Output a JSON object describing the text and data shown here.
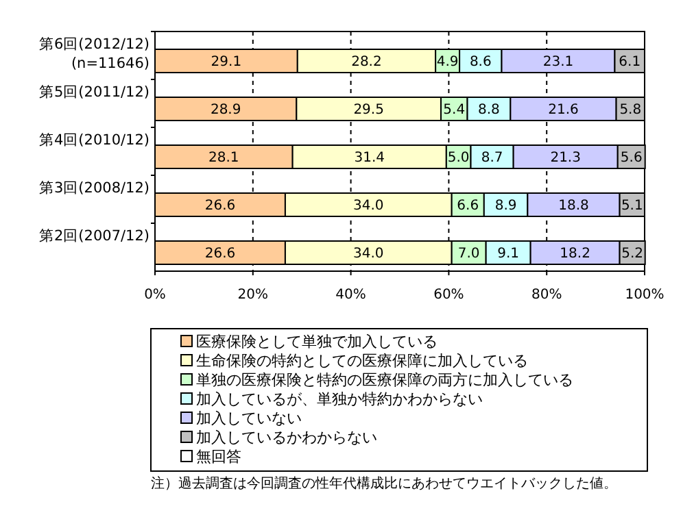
{
  "chart_data": {
    "type": "bar",
    "orientation": "horizontal",
    "stacked": true,
    "categories": [
      "第6回(2012/12)\n(n=11646)",
      "第5回(2011/12)",
      "第4回(2010/12)",
      "第3回(2008/12)",
      "第2回(2007/12)"
    ],
    "series": [
      {
        "name": "医療保険として単独で加入している",
        "color": "#ffcc99",
        "values": [
          29.1,
          28.9,
          28.1,
          26.6,
          26.6
        ],
        "value_labels": [
          "29.1",
          "28.9",
          "28.1",
          "26.6",
          "26.6"
        ]
      },
      {
        "name": "生命保険の特約としての医療保障に加入している",
        "color": "#ffffcc",
        "values": [
          28.2,
          29.5,
          31.4,
          34.0,
          34.0
        ],
        "value_labels": [
          "28.2",
          "29.5",
          "31.4",
          "34.0",
          "34.0"
        ]
      },
      {
        "name": "単独の医療保険と特約の医療保障の両方に加入している",
        "color": "#ccffcc",
        "values": [
          4.9,
          5.4,
          5.0,
          6.6,
          7.0
        ],
        "value_labels": [
          "4.9",
          "5.4",
          "5.0",
          "6.6",
          "7.0"
        ]
      },
      {
        "name": "加入しているが、単独か特約かわからない",
        "color": "#ccffff",
        "values": [
          8.6,
          8.8,
          8.7,
          8.9,
          9.1
        ],
        "value_labels": [
          "8.6",
          "8.8",
          "8.7",
          "8.9",
          "9.1"
        ]
      },
      {
        "name": "加入していない",
        "color": "#ccccff",
        "values": [
          23.1,
          21.6,
          21.3,
          18.8,
          18.2
        ],
        "value_labels": [
          "23.1",
          "21.6",
          "21.3",
          "18.8",
          "18.2"
        ]
      },
      {
        "name": "加入しているかわからない",
        "color": "#c0c0c0",
        "values": [
          6.1,
          5.8,
          5.6,
          5.1,
          5.2
        ],
        "value_labels": [
          "6.1",
          "5.8",
          "5.6",
          "5.1",
          "5.2"
        ]
      },
      {
        "name": "無回答",
        "color": "#ffffff",
        "values": [
          0,
          0,
          0,
          0,
          0
        ],
        "value_labels": [
          null,
          null,
          null,
          null,
          null
        ]
      }
    ],
    "xlim": [
      0,
      100
    ],
    "xticks": [
      {
        "value": 0,
        "label": "0%"
      },
      {
        "value": 20,
        "label": "20%"
      },
      {
        "value": 40,
        "label": "40%"
      },
      {
        "value": 60,
        "label": "60%"
      },
      {
        "value": 80,
        "label": "80%"
      },
      {
        "value": 100,
        "label": "100%"
      }
    ],
    "grid": "x",
    "legend": "bottom",
    "annotations": [
      "注）過去調査は今回調査の性年代構成比にあわせてウエイトバックした値。"
    ]
  }
}
